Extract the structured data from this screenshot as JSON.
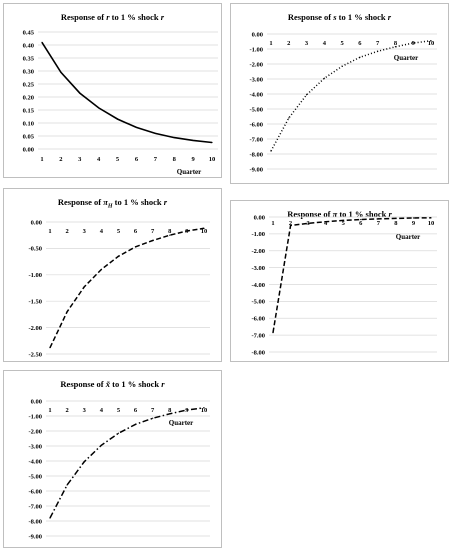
{
  "chart_data": [
    {
      "type": "line",
      "title": "Response of r to 1 % shock r",
      "title_parts": {
        "pre": "Response of ",
        "sym": "r",
        "mid": " to 1 % shock ",
        "end": "r"
      },
      "xlabel": "Quarter",
      "x": [
        1,
        2,
        3,
        4,
        5,
        6,
        7,
        8,
        9,
        10
      ],
      "values": [
        0.41,
        0.295,
        0.215,
        0.158,
        0.115,
        0.083,
        0.06,
        0.044,
        0.033,
        0.025
      ],
      "ylim": [
        0.0,
        0.45
      ],
      "ytick_labels": [
        "0.45",
        "0.40",
        "0.35",
        "0.30",
        "0.25",
        "0.20",
        "0.15",
        "0.10",
        "0.05",
        "0.00"
      ],
      "x_axis_at": "bottom",
      "line_style": "solid",
      "grid": true
    },
    {
      "type": "line",
      "title": "Response of s to 1 % shock r",
      "title_parts": {
        "pre": "Response of ",
        "sym": "s",
        "mid": " to 1 % shock ",
        "end": "r"
      },
      "xlabel": "Quarter",
      "x": [
        1,
        2,
        3,
        4,
        5,
        6,
        7,
        8,
        9,
        10
      ],
      "values": [
        -7.8,
        -5.6,
        -4.05,
        -2.95,
        -2.15,
        -1.55,
        -1.15,
        -0.85,
        -0.6,
        -0.45
      ],
      "ylim": [
        -9.0,
        0.0
      ],
      "ytick_labels": [
        "0.00",
        "-1.00",
        "-2.00",
        "-3.00",
        "-4.00",
        "-5.00",
        "-6.00",
        "-7.00",
        "-8.00",
        "-9.00"
      ],
      "x_axis_at": "top",
      "line_style": "dotted",
      "grid": true
    },
    {
      "type": "line",
      "title": "Response of πH to 1 % shock r",
      "title_parts": {
        "pre": "Response of ",
        "sym": "π",
        "sub": "H",
        "mid": " to 1 % shock ",
        "end": "r"
      },
      "xlabel": "",
      "x": [
        1,
        2,
        3,
        4,
        5,
        6,
        7,
        8,
        9,
        10
      ],
      "values": [
        -2.38,
        -1.7,
        -1.23,
        -0.9,
        -0.65,
        -0.47,
        -0.35,
        -0.25,
        -0.17,
        -0.12
      ],
      "ylim": [
        -2.5,
        0.0
      ],
      "ytick_labels": [
        "0.00",
        "-0.50",
        "-1.00",
        "-1.50",
        "-2.00",
        "-2.50"
      ],
      "x_axis_at": "top",
      "line_style": "dashed",
      "grid": true
    },
    {
      "type": "line",
      "title": "Response of π to 1 % shock r",
      "title_parts": {
        "pre": "Response of ",
        "sym": "π",
        "mid": " to 1 % shock ",
        "end": "r"
      },
      "xlabel": "Quarter",
      "x": [
        1,
        2,
        3,
        4,
        5,
        6,
        7,
        8,
        9,
        10
      ],
      "values": [
        -6.85,
        -0.5,
        -0.38,
        -0.28,
        -0.2,
        -0.15,
        -0.11,
        -0.08,
        -0.06,
        -0.05
      ],
      "ylim": [
        -8.0,
        0.0
      ],
      "ytick_labels": [
        "0.00",
        "-1.00",
        "-2.00",
        "-3.00",
        "-4.00",
        "-5.00",
        "-6.00",
        "-7.00",
        "-8.00"
      ],
      "x_axis_at": "top",
      "line_style": "dashed",
      "grid": true
    },
    {
      "type": "line",
      "title": "Response of x̃ to 1 % shock r",
      "title_parts": {
        "pre": "Response of ",
        "sym": "x̃",
        "mid": " to 1 % shock ",
        "end": "r"
      },
      "xlabel": "Quarter",
      "x": [
        1,
        2,
        3,
        4,
        5,
        6,
        7,
        8,
        9,
        10
      ],
      "values": [
        -7.8,
        -5.6,
        -4.05,
        -2.95,
        -2.15,
        -1.55,
        -1.15,
        -0.85,
        -0.6,
        -0.45
      ],
      "ylim": [
        -9.0,
        0.0
      ],
      "ytick_labels": [
        "0.00",
        "-1.00",
        "-2.00",
        "-3.00",
        "-4.00",
        "-5.00",
        "-6.00",
        "-7.00",
        "-8.00",
        "-9.00"
      ],
      "x_axis_at": "top",
      "line_style": "dashdot",
      "grid": true
    }
  ]
}
